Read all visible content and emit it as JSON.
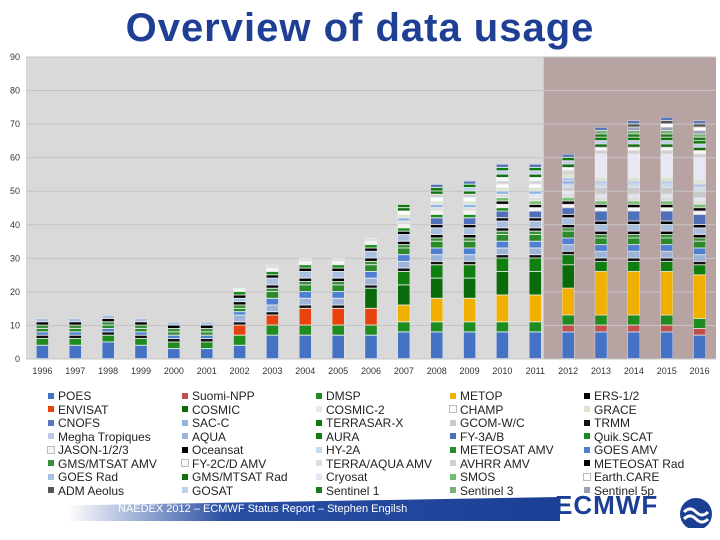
{
  "title": "Overview of data usage",
  "footer": {
    "text": "NAEDEX 2012 – ECMWF Status Report – Stephen Engilsh",
    "logo": "ECMWF"
  },
  "colors": {
    "title": "#1f3f95",
    "plot_bg": "#d9d9d9",
    "future_bg": "#b8a3a3"
  },
  "chart_data": {
    "type": "bar",
    "stacked": true,
    "ylim": [
      0,
      90
    ],
    "yticks": [
      0,
      10,
      20,
      30,
      40,
      50,
      60,
      70,
      80,
      90
    ],
    "grid": true,
    "legend_position": "bottom",
    "shaded_region_from": "2012",
    "categories": [
      "1996",
      "1997",
      "1998",
      "1999",
      "2000",
      "2001",
      "2002",
      "2003",
      "2004",
      "2005",
      "2006",
      "2007",
      "2008",
      "2009",
      "2010",
      "2011",
      "2012",
      "2013",
      "2014",
      "2015",
      "2016"
    ],
    "legend": [
      {
        "name": "POES",
        "color": "#4472c4"
      },
      {
        "name": "Suomi-NPP",
        "color": "#c0504d"
      },
      {
        "name": "DMSP",
        "color": "#1e8c1e"
      },
      {
        "name": "METOP",
        "color": "#f0b000"
      },
      {
        "name": "ERS-1/2",
        "color": "#000000"
      },
      {
        "name": "ENVISAT",
        "color": "#e8430f"
      },
      {
        "name": "COSMIC",
        "color": "#0a6b0a"
      },
      {
        "name": "COSMIC-2",
        "color": "#e8e8f4"
      },
      {
        "name": "CHAMP",
        "color": "#ffffff"
      },
      {
        "name": "GRACE",
        "color": "#d8e8d0"
      },
      {
        "name": "CNOFS",
        "color": "#5a76b8"
      },
      {
        "name": "SAC-C",
        "color": "#8fb4e3"
      },
      {
        "name": "TERRASAR-X",
        "color": "#0e7a0e"
      },
      {
        "name": "GCOM-W/C",
        "color": "#c9c9c9"
      },
      {
        "name": "TRMM",
        "color": "#111111"
      },
      {
        "name": "Megha Tropiques",
        "color": "#b8c8e8"
      },
      {
        "name": "AQUA",
        "color": "#9db3d8"
      },
      {
        "name": "AURA",
        "color": "#107f10"
      },
      {
        "name": "FY-3A/B",
        "color": "#4f6fb8"
      },
      {
        "name": "Quik.SCAT",
        "color": "#1a8a1a"
      },
      {
        "name": "JASON-1/2/3",
        "color": "#f4f4f4"
      },
      {
        "name": "Oceansat",
        "color": "#000000"
      },
      {
        "name": "HY-2A",
        "color": "#c8dcf0"
      },
      {
        "name": "METEOSAT AMV",
        "color": "#2b8a2b"
      },
      {
        "name": "GOES AMV",
        "color": "#4f7fd0"
      },
      {
        "name": "GMS/MTSAT AMV",
        "color": "#3a8f3a"
      },
      {
        "name": "FY-2C/D AMV",
        "color": "#f8f8f8"
      },
      {
        "name": "TERRA/AQUA AMV",
        "color": "#dcdcdc"
      },
      {
        "name": "AVHRR AMV",
        "color": "#cfcfcf"
      },
      {
        "name": "METEOSAT Rad",
        "color": "#000000"
      },
      {
        "name": "GOES Rad",
        "color": "#a8bfe0"
      },
      {
        "name": "GMS/MTSAT Rad",
        "color": "#126f12"
      },
      {
        "name": "Cryosat",
        "color": "#e0e6f4"
      },
      {
        "name": "SMOS",
        "color": "#6fbf6f"
      },
      {
        "name": "Earth.CARE",
        "color": "#ffffff"
      },
      {
        "name": "ADM Aeolus",
        "color": "#555555"
      },
      {
        "name": "GOSAT",
        "color": "#bcd0ec"
      },
      {
        "name": "Sentinel 1",
        "color": "#1a7a1a"
      },
      {
        "name": "Sentinel 3",
        "color": "#7ab07a"
      },
      {
        "name": "Sentinel 5p",
        "color": "#9aa0b8"
      }
    ],
    "series": [
      {
        "name": "POES",
        "values": [
          4,
          4,
          5,
          4,
          3,
          3,
          4,
          7,
          7,
          7,
          7,
          8,
          8,
          8,
          8,
          8,
          8,
          8,
          8,
          8,
          7
        ]
      },
      {
        "name": "Suomi-NPP",
        "values": [
          0,
          0,
          0,
          0,
          0,
          0,
          0,
          0,
          0,
          0,
          0,
          0,
          0,
          0,
          0,
          0,
          2,
          2,
          2,
          2,
          2
        ]
      },
      {
        "name": "DMSP",
        "values": [
          2,
          2,
          2,
          2,
          2,
          2,
          3,
          3,
          3,
          3,
          3,
          3,
          3,
          3,
          3,
          3,
          3,
          3,
          3,
          3,
          3
        ]
      },
      {
        "name": "METOP",
        "values": [
          0,
          0,
          0,
          0,
          0,
          0,
          0,
          0,
          0,
          0,
          0,
          5,
          7,
          7,
          8,
          8,
          8,
          13,
          13,
          13,
          13
        ]
      },
      {
        "name": "ENVISAT",
        "values": [
          0,
          0,
          0,
          0,
          0,
          0,
          3,
          3,
          5,
          5,
          5,
          0,
          0,
          0,
          0,
          0,
          0,
          0,
          0,
          0,
          0
        ]
      },
      {
        "name": "COSMIC",
        "values": [
          0,
          0,
          0,
          0,
          0,
          0,
          0,
          0,
          0,
          0,
          6,
          6,
          6,
          6,
          7,
          7,
          7,
          0,
          0,
          0,
          0
        ]
      },
      {
        "name": "AURA",
        "values": [
          0,
          0,
          0,
          0,
          0,
          0,
          0,
          0,
          0,
          0,
          0,
          4,
          4,
          4,
          4,
          4,
          3,
          3,
          3,
          3,
          3
        ]
      },
      {
        "name": "TRMM",
        "values": [
          1,
          1,
          1,
          1,
          1,
          1,
          1,
          1,
          1,
          1,
          1,
          1,
          1,
          1,
          1,
          1,
          1,
          1,
          1,
          1,
          1
        ]
      },
      {
        "name": "AQUA",
        "values": [
          0,
          0,
          0,
          0,
          0,
          0,
          2,
          2,
          2,
          2,
          2,
          2,
          2,
          2,
          2,
          2,
          2,
          2,
          2,
          2,
          2
        ]
      },
      {
        "name": "GOES AMV",
        "values": [
          1,
          1,
          1,
          1,
          1,
          1,
          1,
          2,
          2,
          2,
          2,
          2,
          2,
          2,
          2,
          2,
          2,
          2,
          2,
          2,
          2
        ]
      },
      {
        "name": "METEOSAT AMV",
        "values": [
          1,
          1,
          1,
          1,
          1,
          1,
          1,
          2,
          2,
          2,
          2,
          2,
          2,
          2,
          2,
          2,
          2,
          2,
          2,
          2,
          2
        ]
      },
      {
        "name": "GMS/MTSAT AMV",
        "values": [
          1,
          1,
          1,
          1,
          1,
          1,
          1,
          1,
          1,
          1,
          1,
          1,
          1,
          1,
          1,
          1,
          1,
          1,
          1,
          1,
          1
        ]
      },
      {
        "name": "METEOSAT Rad",
        "values": [
          1,
          1,
          1,
          1,
          1,
          1,
          1,
          1,
          1,
          1,
          1,
          1,
          1,
          1,
          1,
          1,
          1,
          1,
          1,
          1,
          1
        ]
      },
      {
        "name": "GOES Rad",
        "values": [
          1,
          1,
          1,
          1,
          1,
          1,
          1,
          2,
          2,
          2,
          2,
          2,
          2,
          2,
          2,
          2,
          2,
          2,
          2,
          2,
          2
        ]
      },
      {
        "name": "ERS-1/2",
        "values": [
          0,
          0,
          0,
          0,
          0,
          0,
          1,
          1,
          1,
          1,
          1,
          1,
          1,
          1,
          1,
          1,
          1,
          1,
          1,
          1,
          1
        ]
      },
      {
        "name": "FY-3A/B",
        "values": [
          0,
          0,
          0,
          0,
          0,
          0,
          0,
          0,
          0,
          0,
          0,
          0,
          2,
          2,
          2,
          2,
          2,
          3,
          3,
          3,
          3
        ]
      },
      {
        "name": "Quik.SCAT",
        "values": [
          0,
          0,
          0,
          0,
          0,
          0,
          1,
          1,
          1,
          1,
          1,
          1,
          1,
          1,
          1,
          0,
          0,
          0,
          0,
          0,
          0
        ]
      },
      {
        "name": "JASON-1/2/3",
        "values": [
          0,
          0,
          0,
          0,
          0,
          0,
          1,
          1,
          1,
          1,
          1,
          1,
          1,
          1,
          1,
          1,
          1,
          1,
          1,
          1,
          1
        ]
      },
      {
        "name": "Oceansat",
        "values": [
          0,
          0,
          0,
          0,
          0,
          0,
          0,
          0,
          0,
          0,
          0,
          0,
          0,
          0,
          1,
          1,
          1,
          1,
          1,
          1,
          1
        ]
      },
      {
        "name": "SMOS",
        "values": [
          0,
          0,
          0,
          0,
          0,
          0,
          0,
          0,
          0,
          0,
          0,
          0,
          0,
          0,
          1,
          1,
          1,
          1,
          1,
          1,
          1
        ]
      },
      {
        "name": "TERRA/AQUA AMV",
        "values": [
          0,
          0,
          0,
          0,
          0,
          0,
          0,
          1,
          1,
          1,
          1,
          1,
          1,
          1,
          1,
          1,
          1,
          1,
          1,
          1,
          1
        ]
      },
      {
        "name": "Cryosat",
        "values": [
          0,
          0,
          0,
          0,
          0,
          0,
          0,
          0,
          0,
          0,
          0,
          0,
          0,
          0,
          0,
          1,
          1,
          1,
          1,
          1,
          1
        ]
      },
      {
        "name": "GCOM-W/C",
        "values": [
          0,
          0,
          0,
          0,
          0,
          0,
          0,
          0,
          0,
          0,
          0,
          0,
          0,
          0,
          0,
          0,
          1,
          2,
          2,
          2,
          2
        ]
      },
      {
        "name": "HY-2A",
        "values": [
          0,
          0,
          0,
          0,
          0,
          0,
          0,
          0,
          0,
          0,
          0,
          0,
          0,
          0,
          0,
          0,
          1,
          1,
          1,
          1,
          1
        ]
      },
      {
        "name": "SAC-C",
        "values": [
          0,
          0,
          0,
          0,
          0,
          0,
          0,
          0,
          0,
          0,
          0,
          1,
          1,
          1,
          1,
          1,
          1,
          0,
          0,
          0,
          0
        ]
      },
      {
        "name": "Megha Tropiques",
        "values": [
          0,
          0,
          0,
          0,
          0,
          0,
          0,
          0,
          0,
          0,
          0,
          0,
          0,
          0,
          0,
          0,
          1,
          1,
          1,
          1,
          1
        ]
      },
      {
        "name": "GRACE",
        "values": [
          0,
          0,
          0,
          0,
          0,
          0,
          0,
          0,
          0,
          0,
          0,
          1,
          1,
          1,
          1,
          1,
          1,
          1,
          1,
          1,
          1
        ]
      },
      {
        "name": "CHAMP",
        "values": [
          0,
          0,
          0,
          0,
          0,
          0,
          0,
          0,
          0,
          0,
          0,
          1,
          1,
          1,
          1,
          1,
          0,
          0,
          0,
          0,
          0
        ]
      },
      {
        "name": "COSMIC-2",
        "values": [
          0,
          0,
          0,
          0,
          0,
          0,
          0,
          0,
          0,
          0,
          0,
          0,
          0,
          0,
          0,
          0,
          0,
          7,
          7,
          7,
          7
        ]
      },
      {
        "name": "AVHRR AMV",
        "values": [
          0,
          0,
          0,
          0,
          0,
          0,
          0,
          0,
          0,
          0,
          0,
          0,
          1,
          1,
          1,
          1,
          1,
          1,
          1,
          1,
          1
        ]
      },
      {
        "name": "FY-2C/D AMV",
        "values": [
          0,
          0,
          0,
          0,
          0,
          0,
          0,
          0,
          0,
          0,
          0,
          0,
          0,
          0,
          1,
          1,
          1,
          1,
          1,
          1,
          1
        ]
      },
      {
        "name": "GMS/MTSAT Rad",
        "values": [
          0,
          0,
          0,
          0,
          0,
          0,
          0,
          0,
          0,
          0,
          0,
          1,
          1,
          1,
          1,
          1,
          1,
          1,
          1,
          1,
          1
        ]
      },
      {
        "name": "GOSAT",
        "values": [
          0,
          0,
          0,
          0,
          0,
          0,
          0,
          0,
          0,
          0,
          0,
          0,
          0,
          1,
          1,
          1,
          1,
          1,
          1,
          1,
          1
        ]
      },
      {
        "name": "TERRASAR-X",
        "values": [
          0,
          0,
          0,
          0,
          0,
          0,
          0,
          0,
          0,
          0,
          0,
          1,
          1,
          1,
          1,
          1,
          1,
          1,
          1,
          1,
          1
        ]
      },
      {
        "name": "Sentinel 1",
        "values": [
          0,
          0,
          0,
          0,
          0,
          0,
          0,
          0,
          0,
          0,
          0,
          0,
          0,
          0,
          0,
          0,
          0,
          1,
          1,
          1,
          1
        ]
      },
      {
        "name": "Sentinel 3",
        "values": [
          0,
          0,
          0,
          0,
          0,
          0,
          0,
          0,
          0,
          0,
          0,
          0,
          0,
          0,
          0,
          0,
          0,
          1,
          1,
          1,
          1
        ]
      },
      {
        "name": "Sentinel 5p",
        "values": [
          0,
          0,
          0,
          0,
          0,
          0,
          0,
          0,
          0,
          0,
          0,
          0,
          0,
          0,
          0,
          0,
          0,
          0,
          1,
          1,
          1
        ]
      },
      {
        "name": "Earth.CARE",
        "values": [
          0,
          0,
          0,
          0,
          0,
          0,
          0,
          0,
          0,
          0,
          0,
          0,
          0,
          0,
          0,
          0,
          0,
          0,
          0,
          1,
          1
        ]
      },
      {
        "name": "ADM Aeolus",
        "values": [
          0,
          0,
          0,
          0,
          0,
          0,
          0,
          0,
          0,
          0,
          0,
          0,
          0,
          0,
          0,
          0,
          0,
          0,
          1,
          1,
          1
        ]
      },
      {
        "name": "CNOFS",
        "values": [
          0,
          0,
          0,
          0,
          0,
          0,
          0,
          0,
          0,
          0,
          0,
          0,
          1,
          1,
          1,
          1,
          1,
          1,
          1,
          1,
          1
        ]
      }
    ]
  }
}
